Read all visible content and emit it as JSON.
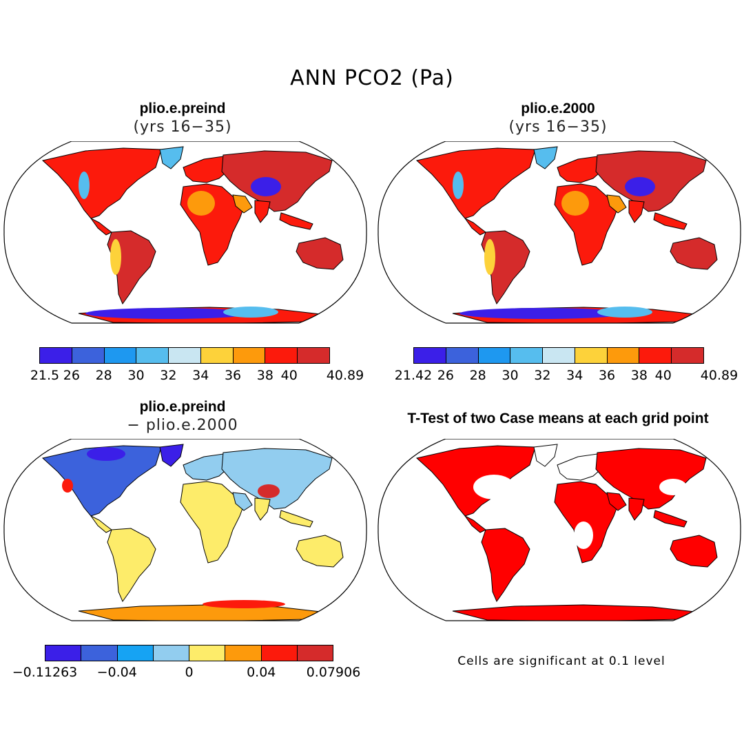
{
  "title": "ANN PCO2 (Pa)",
  "colors": {
    "levels_abs": [
      "#3b1fe8",
      "#3c62dc",
      "#1e98f0",
      "#56bdee",
      "#c9e6f2",
      "#fdd23a",
      "#fd9a0c",
      "#fc1a0c",
      "#d52b2b"
    ],
    "levels_diff": [
      "#3b1fe8",
      "#3c62dc",
      "#16a3f3",
      "#92cdef",
      "#fdec6a",
      "#fd9a0c",
      "#fc1a0c",
      "#d52b2b"
    ],
    "ttest": "#ff0000"
  },
  "panels": [
    {
      "title": "plio.e.preind",
      "subtitle": "(yrs 16−35)",
      "colorbar_labels": [
        "21.5",
        "26",
        "28",
        "30",
        "32",
        "34",
        "36",
        "38",
        "40",
        "40.89"
      ]
    },
    {
      "title": "plio.e.2000",
      "subtitle": "(yrs 16−35)",
      "colorbar_labels": [
        "21.42",
        "26",
        "28",
        "30",
        "32",
        "34",
        "36",
        "38",
        "40",
        "40.89"
      ]
    },
    {
      "title": "plio.e.preind",
      "subtitle": "− plio.e.2000",
      "colorbar_labels": [
        "−0.11263",
        "−0.04",
        "0",
        "0.04",
        "0.07906"
      ]
    },
    {
      "title": "T-Test of two Case means at each grid point",
      "note": "Cells are significant at 0.1 level"
    }
  ]
}
